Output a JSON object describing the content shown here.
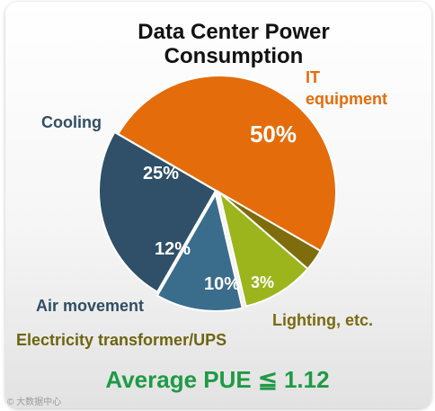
{
  "chart_data": {
    "type": "pie",
    "title": "Data Center Power Consumption",
    "title_lines": [
      "Data Center Power",
      "Consumption"
    ],
    "slices": [
      {
        "name": "IT equipment",
        "label_lines": [
          "IT",
          "equipment"
        ],
        "value": 50,
        "pct_label": "50%",
        "color": "#e46c0a",
        "label_color": "#e46c0a"
      },
      {
        "name": "Lighting, etc.",
        "label_lines": [
          "Lighting, etc."
        ],
        "value": 3,
        "pct_label": "3%",
        "color": "#7f6c0d",
        "label_color": "#7a6a10"
      },
      {
        "name": "Electricity transformer/UPS",
        "label_lines": [
          "Electricity transformer/UPS"
        ],
        "value": 10,
        "pct_label": "10%",
        "color": "#9cb51c",
        "label_color": "#6e6410"
      },
      {
        "name": "Air movement",
        "label_lines": [
          "Air movement"
        ],
        "value": 12,
        "pct_label": "12%",
        "color": "#3a6c8c",
        "label_color": "#2f4e63"
      },
      {
        "name": "Cooling",
        "label_lines": [
          "Cooling"
        ],
        "value": 25,
        "pct_label": "25%",
        "color": "#2f5068",
        "label_color": "#2f4e63"
      }
    ]
  },
  "footer": {
    "pue_text": "Average PUE ≦ 1.12",
    "watermark": "© 大数据中心"
  }
}
